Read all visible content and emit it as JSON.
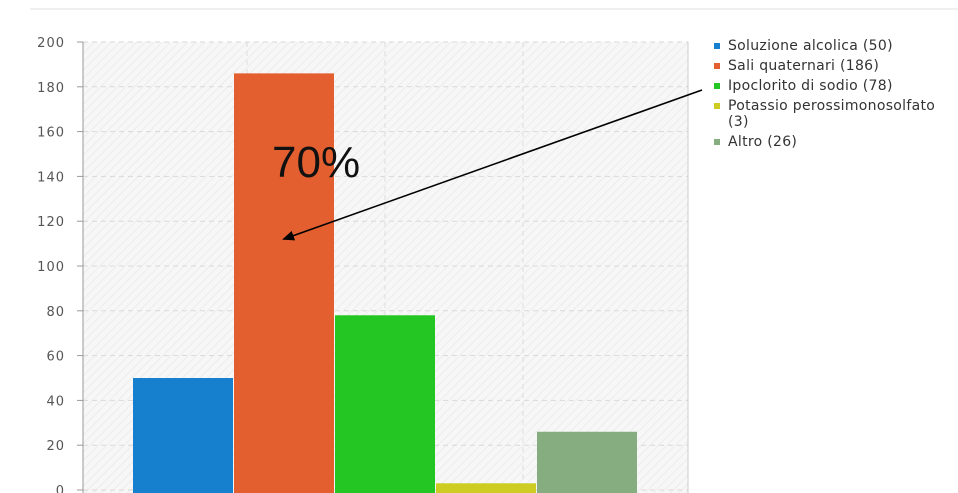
{
  "chart_data": {
    "type": "bar",
    "categories": [
      "Soluzione alcolica",
      "Sali quaternari",
      "Ipoclorito di sodio",
      "Potassio perossimonosolfato",
      "Altro"
    ],
    "values": [
      50,
      186,
      78,
      3,
      26
    ],
    "colors": [
      "#1680cf",
      "#e35f30",
      "#23c622",
      "#cccc22",
      "#85ad7f"
    ],
    "ylim": [
      0,
      200
    ],
    "yticks": [
      0,
      20,
      40,
      60,
      80,
      100,
      120,
      140,
      160,
      180,
      200
    ],
    "ytick_labels": [
      "0",
      "20",
      "40",
      "60",
      "80",
      "100",
      "120",
      "140",
      "160",
      "180",
      "200"
    ],
    "legend_position": "right",
    "grid": true,
    "legend": [
      {
        "label": "Soluzione alcolica (50)",
        "color": "#1680cf"
      },
      {
        "label": "Sali quaternari (186)",
        "color": "#e35f30"
      },
      {
        "label": "Ipoclorito di sodio (78)",
        "color": "#23c622"
      },
      {
        "label": "Potassio perossimonosolfato (3)",
        "color": "#cccc22"
      },
      {
        "label": "Altro (26)",
        "color": "#85ad7f"
      }
    ],
    "annotation": {
      "text": "70%",
      "points_to": "Sali quaternari"
    }
  }
}
